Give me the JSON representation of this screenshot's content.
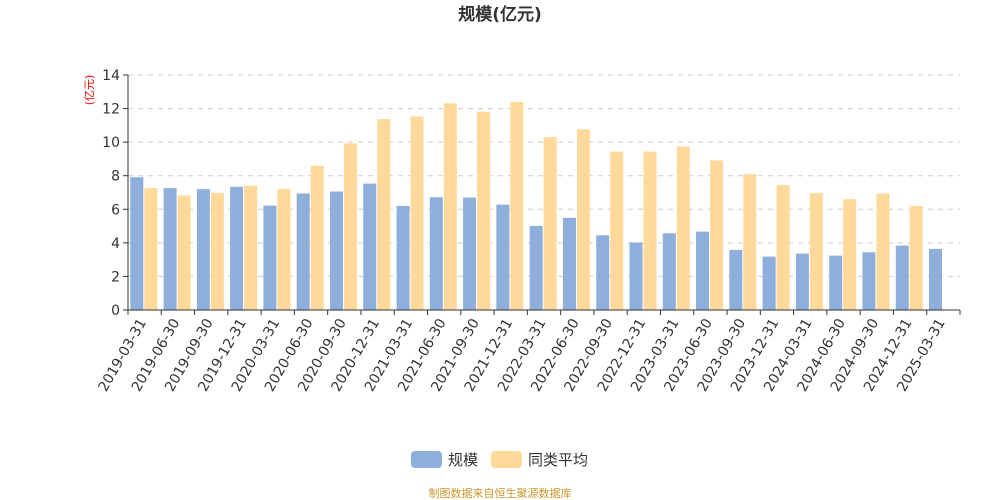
{
  "chart_data": {
    "type": "bar",
    "title": "规模(亿元)",
    "ylabel": "(亿元)",
    "ylim": [
      0,
      14
    ],
    "yticks": [
      0,
      2,
      4,
      6,
      8,
      10,
      12,
      14
    ],
    "grid": true,
    "legend_position": "bottom",
    "categories": [
      "2019-03-31",
      "2019-06-30",
      "2019-09-30",
      "2019-12-31",
      "2020-03-31",
      "2020-06-30",
      "2020-09-30",
      "2020-12-31",
      "2021-03-31",
      "2021-06-30",
      "2021-09-30",
      "2021-12-31",
      "2022-03-31",
      "2022-06-30",
      "2022-09-30",
      "2022-12-31",
      "2023-03-31",
      "2023-06-30",
      "2023-09-30",
      "2023-12-31",
      "2024-03-31",
      "2024-06-30",
      "2024-09-30",
      "2024-12-31",
      "2025-03-31"
    ],
    "series": [
      {
        "name": "规模",
        "color": "#8eaedb",
        "values": [
          7.91,
          7.26,
          7.2,
          7.34,
          6.22,
          6.94,
          7.06,
          7.53,
          6.2,
          6.72,
          6.7,
          6.28,
          5.01,
          5.49,
          4.45,
          4.02,
          4.57,
          4.67,
          3.58,
          3.18,
          3.36,
          3.24,
          3.44,
          3.84,
          3.64
        ]
      },
      {
        "name": "同类平均",
        "color": "#ffd99a",
        "values": [
          7.26,
          6.82,
          6.98,
          7.4,
          7.22,
          8.59,
          9.92,
          11.37,
          11.53,
          12.31,
          11.81,
          12.39,
          10.3,
          10.76,
          9.44,
          9.44,
          9.74,
          8.91,
          8.09,
          7.44,
          6.96,
          6.6,
          6.94,
          6.2,
          null
        ]
      }
    ],
    "source": "制图数据来自恒生聚源数据库"
  }
}
